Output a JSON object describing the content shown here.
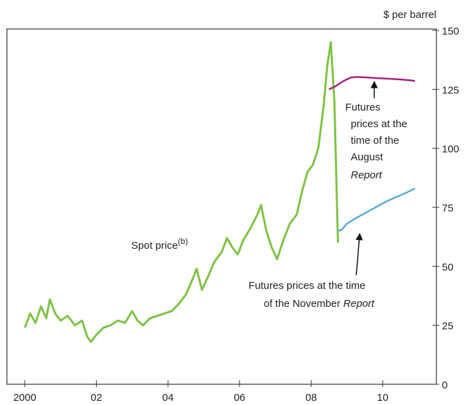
{
  "chart_data": {
    "type": "line",
    "y_axis_label": "$ per barrel",
    "xlim": [
      1999.5,
      2011.5
    ],
    "xticks": [
      {
        "value": 2000,
        "label": "2000"
      },
      {
        "value": 2002,
        "label": "02"
      },
      {
        "value": 2004,
        "label": "04"
      },
      {
        "value": 2006,
        "label": "06"
      },
      {
        "value": 2008,
        "label": "08"
      },
      {
        "value": 2010,
        "label": "10"
      }
    ],
    "ylim": [
      0,
      150
    ],
    "yticks": [
      0,
      25,
      50,
      75,
      100,
      125,
      150
    ],
    "series": [
      {
        "name": "Spot price",
        "name_sup": "(b)",
        "color": "#7dc242",
        "x": [
          2000.0,
          2000.15,
          2000.3,
          2000.45,
          2000.6,
          2000.7,
          2000.85,
          2001.0,
          2001.2,
          2001.4,
          2001.6,
          2001.75,
          2001.85,
          2002.0,
          2002.2,
          2002.4,
          2002.6,
          2002.8,
          2003.0,
          2003.15,
          2003.3,
          2003.5,
          2003.7,
          2003.9,
          2004.1,
          2004.3,
          2004.5,
          2004.7,
          2004.8,
          2004.95,
          2005.1,
          2005.3,
          2005.5,
          2005.65,
          2005.8,
          2005.95,
          2006.1,
          2006.3,
          2006.5,
          2006.6,
          2006.75,
          2006.9,
          2007.05,
          2007.2,
          2007.4,
          2007.6,
          2007.75,
          2007.9,
          2008.05,
          2008.2,
          2008.35,
          2008.45,
          2008.55,
          2008.65,
          2008.75
        ],
        "values": [
          24,
          30,
          26,
          33,
          28,
          36,
          30,
          27,
          29,
          25,
          27,
          20,
          18,
          21,
          24,
          25,
          27,
          26,
          31,
          27,
          25,
          28,
          29,
          30,
          31,
          34,
          38,
          45,
          49,
          40,
          45,
          52,
          56,
          62,
          58,
          55,
          61,
          66,
          72,
          76,
          65,
          58,
          53,
          60,
          68,
          72,
          82,
          90,
          93,
          100,
          118,
          135,
          145,
          120,
          60
        ]
      },
      {
        "name": "Futures prices at the time of the August Report",
        "color": "#a3207f",
        "x": [
          2008.5,
          2008.7,
          2008.9,
          2009.1,
          2009.3,
          2009.6,
          2009.9,
          2010.2,
          2010.5,
          2010.8,
          2010.9
        ],
        "values": [
          125,
          126.5,
          128.5,
          130,
          130.3,
          130,
          129.7,
          129.5,
          129.2,
          128.8,
          128.5
        ]
      },
      {
        "name": "Futures prices at the time of the November Report",
        "color": "#5aaad8",
        "x": [
          2008.75,
          2008.85,
          2009.0,
          2009.2,
          2009.5,
          2009.8,
          2010.1,
          2010.4,
          2010.7,
          2010.9
        ],
        "values": [
          65,
          65.5,
          68,
          70,
          72.5,
          75,
          77.5,
          79.5,
          81.5,
          83
        ]
      }
    ],
    "annotations": {
      "spot": [
        "Spot price",
        "(b)"
      ],
      "august": [
        "Futures",
        "prices at the",
        "time of the",
        "August",
        "Report"
      ],
      "november": [
        "Futures prices at the time",
        "of the November ",
        "Report"
      ]
    }
  }
}
